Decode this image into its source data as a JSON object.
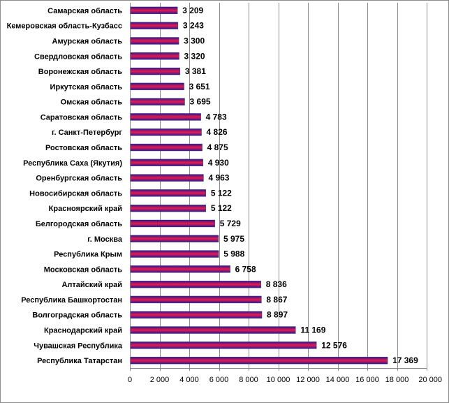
{
  "chart_data": {
    "type": "bar",
    "orientation": "horizontal",
    "categories": [
      "Самарская  область",
      "Кемеровская  область-Кузбасс",
      "Амурская  область",
      "Свердловская  область",
      "Воронежская  область",
      "Иркутская  область",
      "Омская  область",
      "Саратовская  область",
      "г. Санкт-Петербург",
      "Ростовская  область",
      "Республика  Саха (Якутия)",
      "Оренбургская  область",
      "Новосибирская  область",
      "Красноярский  край",
      "Белгородская  область",
      "г. Москва",
      "Республика  Крым",
      "Московская  область",
      "Алтайский  край",
      "Республика  Башкортостан",
      "Волгоградская  область",
      "Краснодарский  край",
      "Чувашская  Республика",
      "Республика  Татарстан"
    ],
    "values": [
      3209,
      3243,
      3300,
      3320,
      3381,
      3651,
      3695,
      4783,
      4826,
      4875,
      4930,
      4963,
      5122,
      5122,
      5729,
      5975,
      5988,
      6758,
      8836,
      8867,
      8897,
      11169,
      12576,
      17369
    ],
    "value_labels": [
      "3 209",
      "3 243",
      "3 300",
      "3 320",
      "3 381",
      "3 651",
      "3 695",
      "4 783",
      "4 826",
      "4 875",
      "4 930",
      "4 963",
      "5 122",
      "5 122",
      "5 729",
      "5 975",
      "5 988",
      "6 758",
      "8 836",
      "8 867",
      "8 897",
      "11 169",
      "12 576",
      "17 369"
    ],
    "xlim": [
      0,
      20000
    ],
    "x_ticks": [
      0,
      2000,
      4000,
      6000,
      8000,
      10000,
      12000,
      14000,
      16000,
      18000,
      20000
    ],
    "x_tick_labels": [
      "0",
      "2 000",
      "4 000",
      "6 000",
      "8 000",
      "10 000",
      "12 000",
      "14 000",
      "16 000",
      "18 000",
      "20 000"
    ],
    "grid": "vertical",
    "bar_gradient": [
      "#2a1a8f",
      "#e8184f"
    ],
    "title": "",
    "xlabel": "",
    "ylabel": ""
  }
}
